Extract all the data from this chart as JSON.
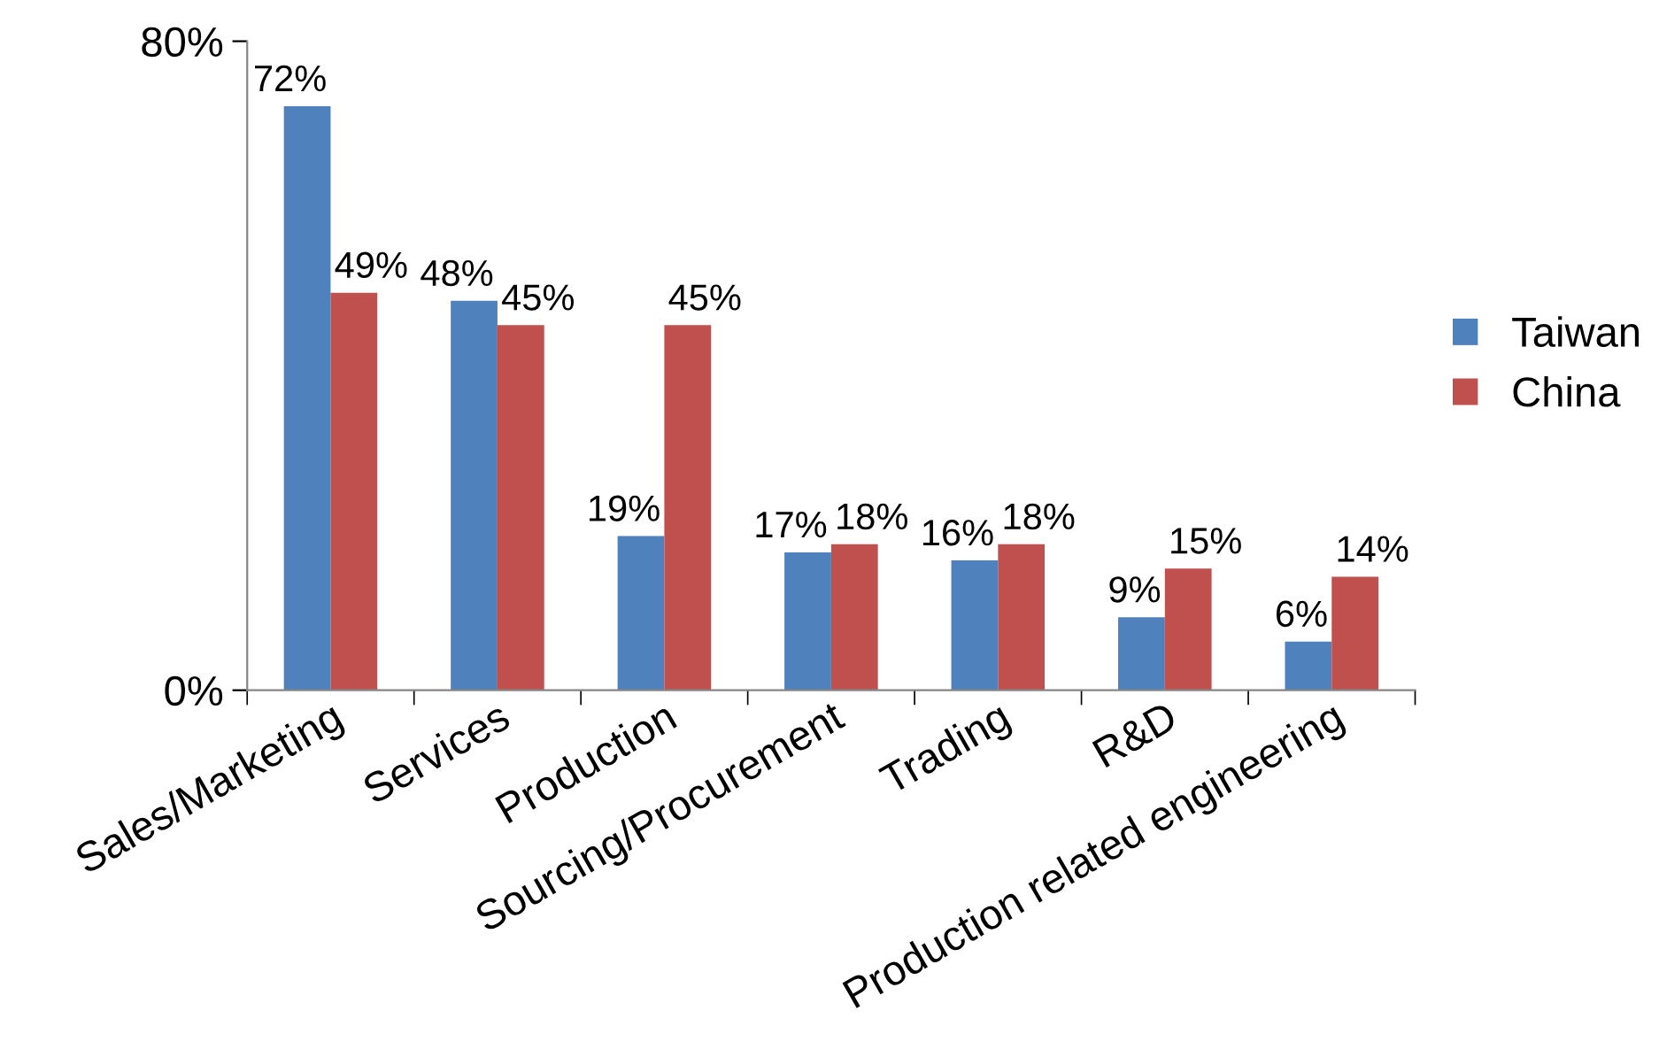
{
  "chart_data": {
    "type": "bar",
    "categories": [
      "Sales/Marketing",
      "Services",
      "Production",
      "Sourcing/Procurement",
      "Trading",
      "R&D",
      "Production related engineering"
    ],
    "series": [
      {
        "name": "Taiwan",
        "color": "#4f81bd",
        "values": [
          72,
          48,
          19,
          17,
          16,
          9,
          6
        ],
        "value_labels": [
          "72%",
          "48%",
          "19%",
          "17%",
          "16%",
          "9%",
          "6%"
        ]
      },
      {
        "name": "China",
        "color": "#c0504d",
        "values": [
          49,
          45,
          45,
          18,
          18,
          15,
          14
        ],
        "value_labels": [
          "49%",
          "45%",
          "45%",
          "18%",
          "18%",
          "15%",
          "14%"
        ]
      }
    ],
    "ylim": [
      0,
      80
    ],
    "yticks": [
      {
        "value": 0,
        "label": "0%"
      },
      {
        "value": 80,
        "label": "80%"
      }
    ],
    "grid": false,
    "legend": "right"
  }
}
